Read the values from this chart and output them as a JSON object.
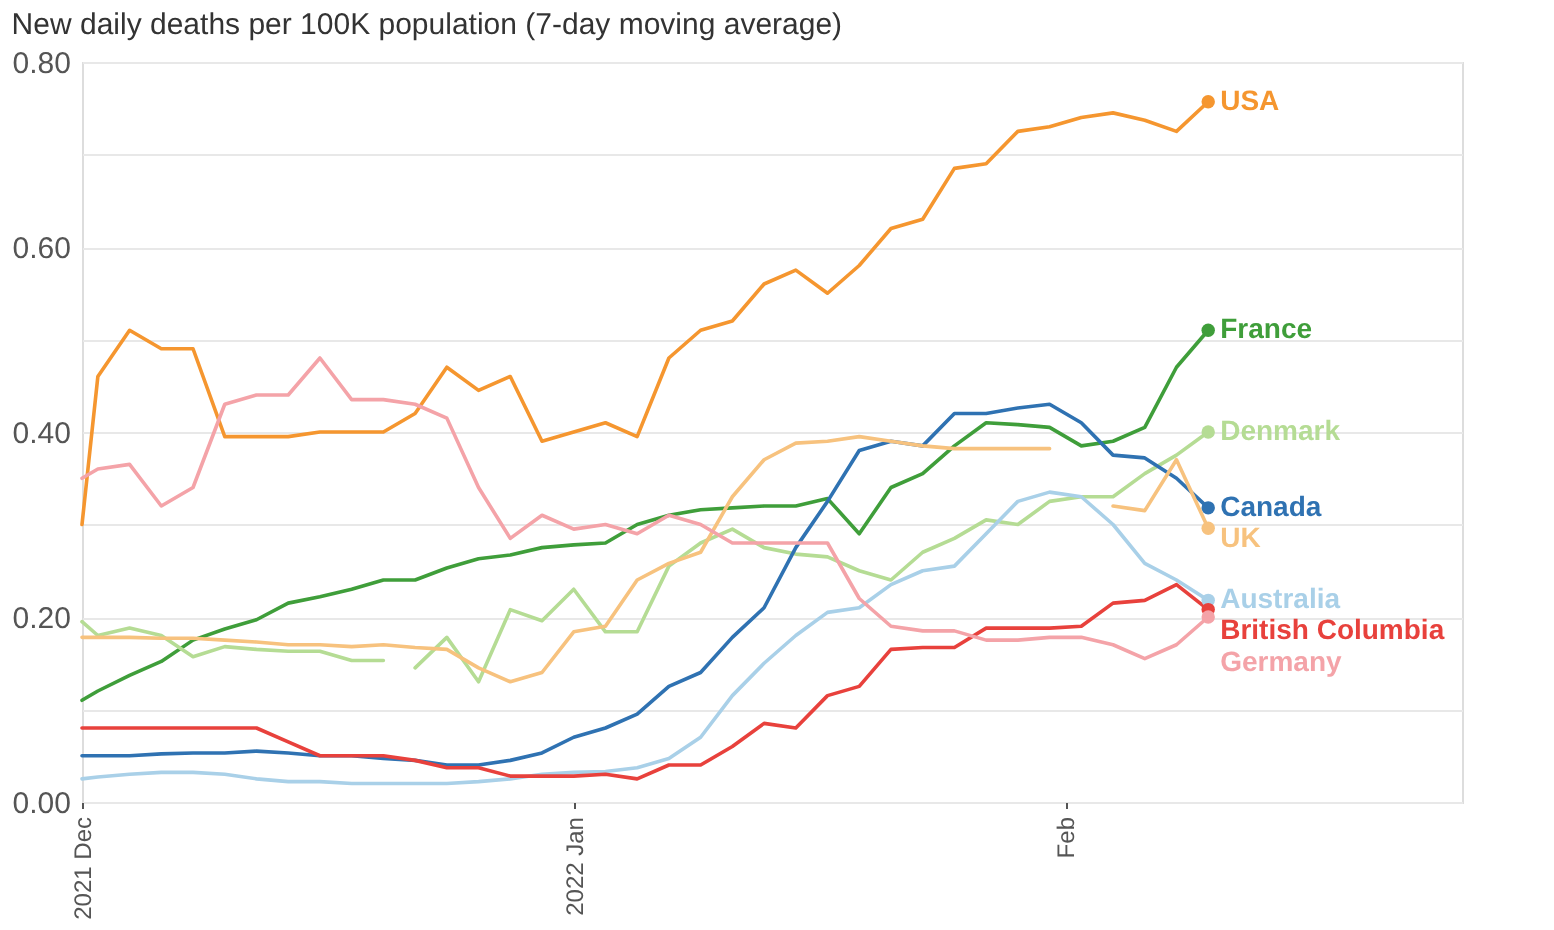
{
  "chart_data": {
    "type": "line",
    "title": "New daily deaths per 100K population (7-day moving average)",
    "x": [
      "2021-12-01",
      "2021-12-02",
      "2021-12-04",
      "2021-12-06",
      "2021-12-08",
      "2021-12-10",
      "2021-12-12",
      "2021-12-14",
      "2021-12-16",
      "2021-12-18",
      "2021-12-20",
      "2021-12-22",
      "2021-12-24",
      "2021-12-26",
      "2021-12-28",
      "2021-12-30",
      "2022-01-01",
      "2022-01-03",
      "2022-01-05",
      "2022-01-07",
      "2022-01-09",
      "2022-01-11",
      "2022-01-13",
      "2022-01-15",
      "2022-01-17",
      "2022-01-19",
      "2022-01-21",
      "2022-01-23",
      "2022-01-25",
      "2022-01-27",
      "2022-01-29",
      "2022-01-31",
      "2022-02-02",
      "2022-02-04",
      "2022-02-06",
      "2022-02-08",
      "2022-02-10"
    ],
    "series": [
      {
        "name": "USA",
        "color": "#f5962f",
        "values": [
          0.3,
          0.46,
          0.51,
          0.49,
          0.49,
          0.395,
          0.395,
          0.395,
          0.4,
          0.4,
          0.4,
          0.42,
          0.47,
          0.445,
          0.46,
          0.39,
          0.4,
          0.41,
          0.395,
          0.48,
          0.51,
          0.52,
          0.56,
          0.575,
          0.55,
          0.58,
          0.62,
          0.63,
          0.685,
          0.69,
          0.725,
          0.73,
          0.74,
          0.745,
          0.737,
          0.725,
          0.757
        ]
      },
      {
        "name": "France",
        "color": "#3f9e3a",
        "values": [
          0.11,
          0.12,
          0.137,
          0.152,
          0.175,
          0.187,
          0.197,
          0.215,
          0.222,
          0.23,
          0.24,
          0.24,
          0.253,
          0.263,
          0.267,
          0.275,
          0.278,
          0.28,
          0.3,
          0.31,
          0.316,
          0.318,
          0.32,
          0.32,
          0.328,
          0.29,
          0.34,
          0.355,
          0.385,
          0.41,
          0.408,
          0.405,
          0.385,
          0.39,
          0.405,
          0.47,
          0.51
        ]
      },
      {
        "name": "Denmark",
        "color": "#b5dc94",
        "x": [
          "2021-12-01",
          "2021-12-02",
          "2021-12-04",
          "2021-12-06",
          "2021-12-08",
          "2021-12-10",
          "2021-12-12",
          "2021-12-14",
          "2021-12-16",
          "2021-12-18",
          "2021-12-20",
          "2021-12-21",
          "2021-12-22",
          "2021-12-24",
          "2021-12-26",
          "2021-12-28",
          "2021-12-30",
          "2022-01-01",
          "2022-01-03",
          "2022-01-05",
          "2022-01-07",
          "2022-01-09",
          "2022-01-11",
          "2022-01-13",
          "2022-01-15",
          "2022-01-17",
          "2022-01-19",
          "2022-01-21",
          "2022-01-23",
          "2022-01-25",
          "2022-01-27",
          "2022-01-29",
          "2022-01-31",
          "2022-02-02",
          "2022-02-04",
          "2022-02-06",
          "2022-02-08",
          "2022-02-10"
        ],
        "values": [
          0.195,
          0.18,
          0.188,
          0.18,
          0.157,
          0.168,
          0.165,
          0.163,
          0.163,
          0.153,
          0.153,
          null,
          0.145,
          0.178,
          0.13,
          0.208,
          0.196,
          0.23,
          0.184,
          0.184,
          0.255,
          0.28,
          0.295,
          0.275,
          0.268,
          0.265,
          0.25,
          0.24,
          0.27,
          0.285,
          0.305,
          0.3,
          0.325,
          0.33,
          0.33,
          0.355,
          0.375,
          0.4
        ]
      },
      {
        "name": "Canada",
        "color": "#2f72b2",
        "values": [
          0.05,
          0.05,
          0.05,
          0.052,
          0.053,
          0.053,
          0.055,
          0.053,
          0.05,
          0.05,
          0.047,
          0.045,
          0.04,
          0.04,
          0.045,
          0.053,
          0.07,
          0.08,
          0.095,
          0.125,
          0.14,
          0.178,
          0.21,
          0.275,
          0.325,
          0.38,
          0.39,
          0.385,
          0.42,
          0.42,
          0.426,
          0.43,
          0.41,
          0.375,
          0.372,
          0.35,
          0.318
        ]
      },
      {
        "name": "UK",
        "color": "#f7c27e",
        "values": [
          0.178,
          0.178,
          0.178,
          0.177,
          0.177,
          0.175,
          0.173,
          0.17,
          0.17,
          0.168,
          0.17,
          0.167,
          0.165,
          0.145,
          0.13,
          0.14,
          0.184,
          0.19,
          0.24,
          0.258,
          0.27,
          0.33,
          0.37,
          0.388,
          0.39,
          0.395,
          0.39,
          0.385,
          0.382,
          0.382,
          0.382,
          0.382,
          null,
          0.32,
          0.315,
          0.37,
          0.296
        ]
      },
      {
        "name": "Australia",
        "color": "#a9d0e8",
        "values": [
          0.025,
          0.027,
          0.03,
          0.032,
          0.032,
          0.03,
          0.025,
          0.022,
          0.022,
          0.02,
          0.02,
          0.02,
          0.02,
          0.022,
          0.025,
          0.03,
          0.032,
          0.033,
          0.037,
          0.047,
          0.07,
          0.115,
          0.15,
          0.18,
          0.205,
          0.21,
          0.235,
          0.25,
          0.255,
          0.29,
          0.325,
          0.335,
          0.33,
          0.3,
          0.258,
          0.24,
          0.218
        ]
      },
      {
        "name": "British Columbia",
        "color": "#e8413c",
        "values": [
          0.08,
          0.08,
          0.08,
          0.08,
          0.08,
          0.08,
          0.08,
          0.065,
          0.05,
          0.05,
          0.05,
          0.045,
          0.037,
          0.037,
          0.028,
          0.028,
          0.028,
          0.03,
          0.025,
          0.04,
          0.04,
          0.06,
          0.085,
          0.08,
          0.115,
          0.125,
          0.165,
          0.167,
          0.167,
          0.188,
          0.188,
          0.188,
          0.19,
          0.215,
          0.218,
          0.235,
          0.208
        ]
      },
      {
        "name": "Germany",
        "color": "#f4a3a8",
        "values": [
          0.35,
          0.36,
          0.365,
          0.32,
          0.34,
          0.43,
          0.44,
          0.44,
          0.48,
          0.435,
          0.435,
          0.43,
          0.415,
          0.34,
          0.285,
          0.31,
          0.295,
          0.3,
          0.29,
          0.31,
          0.3,
          0.28,
          0.28,
          0.28,
          0.28,
          0.22,
          0.19,
          0.185,
          0.185,
          0.175,
          0.175,
          0.178,
          0.178,
          0.17,
          0.155,
          0.17,
          0.2
        ]
      }
    ],
    "xlim": [
      "2021-12-01",
      "2022-02-26"
    ],
    "xticks": [
      {
        "value": "2021-12-01",
        "label": "2021 Dec"
      },
      {
        "value": "2022-01-01",
        "label": "2022 Jan"
      },
      {
        "value": "2022-02-01",
        "label": "Feb"
      }
    ],
    "ylim": [
      0,
      0.8
    ],
    "yticks": [
      {
        "value": 0,
        "label": "0.00"
      },
      {
        "value": 0.1,
        "label": null
      },
      {
        "value": 0.2,
        "label": "0.20"
      },
      {
        "value": 0.3,
        "label": null
      },
      {
        "value": 0.4,
        "label": "0.40"
      },
      {
        "value": 0.5,
        "label": null
      },
      {
        "value": 0.6,
        "label": "0.60"
      },
      {
        "value": 0.7,
        "label": null
      },
      {
        "value": 0.8,
        "label": "0.80"
      }
    ],
    "grid": "y",
    "legend": false,
    "line_style": "solid"
  }
}
